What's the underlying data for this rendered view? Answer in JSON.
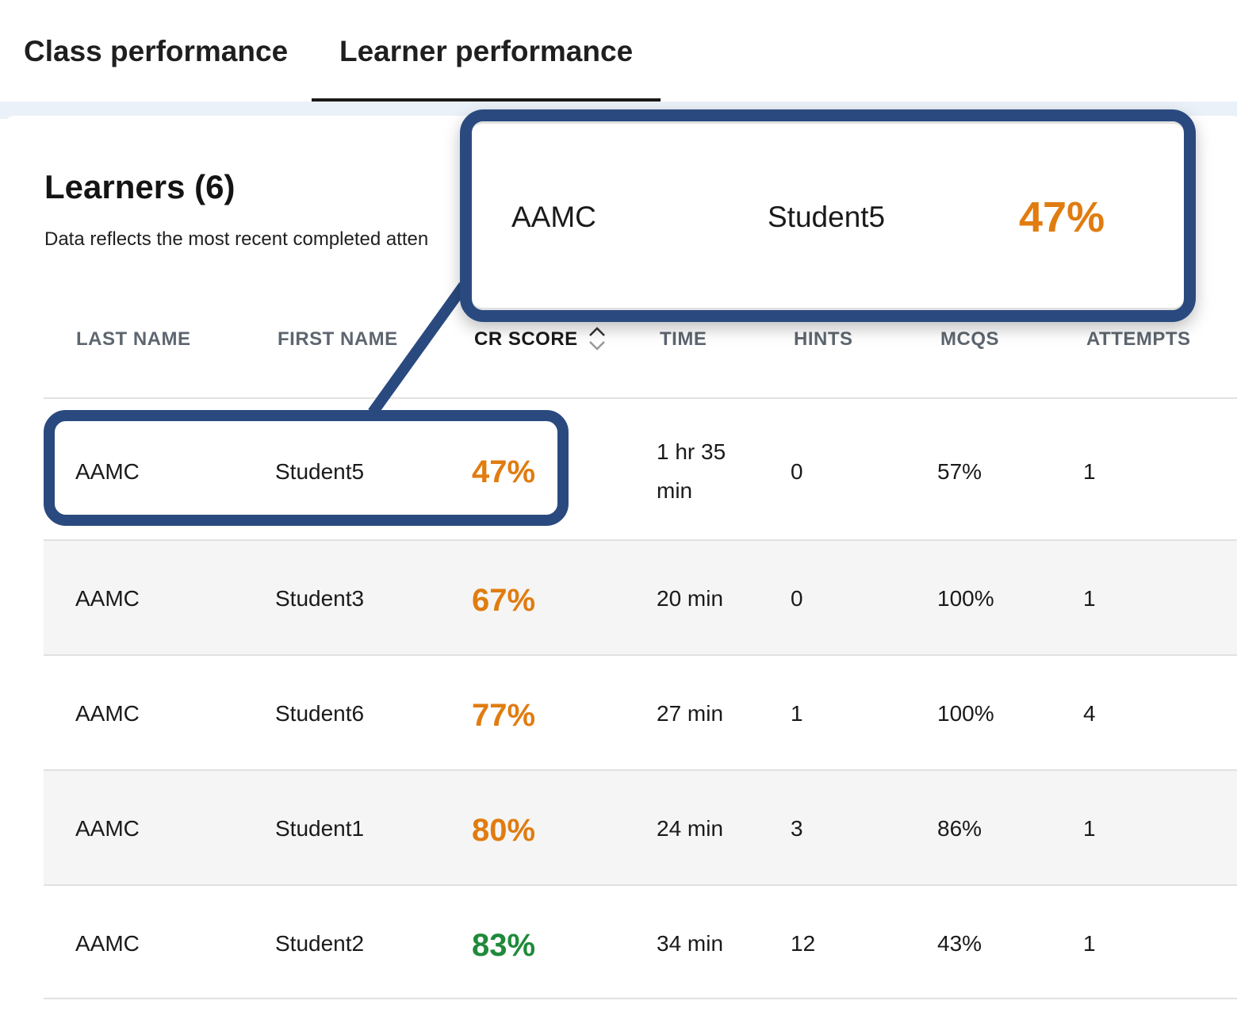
{
  "tabs": [
    {
      "label": "Class performance",
      "active": false
    },
    {
      "label": "Learner performance",
      "active": true
    }
  ],
  "learners": {
    "title": "Learners (6)",
    "subtitle": "Data reflects the most recent completed atten"
  },
  "table": {
    "columns": [
      "LAST NAME",
      "FIRST NAME",
      "CR SCORE",
      "TIME",
      "HINTS",
      "MCQS",
      "ATTEMPTS"
    ],
    "sort_icon": "sort-chevrons-icon",
    "rows": [
      {
        "last_name": "AAMC",
        "first_name": "Student5",
        "cr_score": "47%",
        "time": "1 hr 35 min",
        "hints": "0",
        "mcqs": "57%",
        "attempts": "1",
        "score_color": "#e07c10"
      },
      {
        "last_name": "AAMC",
        "first_name": "Student3",
        "cr_score": "67%",
        "time": "20 min",
        "hints": "0",
        "mcqs": "100%",
        "attempts": "1",
        "score_color": "#e07c10"
      },
      {
        "last_name": "AAMC",
        "first_name": "Student6",
        "cr_score": "77%",
        "time": "27 min",
        "hints": "1",
        "mcqs": "100%",
        "attempts": "4",
        "score_color": "#e07c10"
      },
      {
        "last_name": "AAMC",
        "first_name": "Student1",
        "cr_score": "80%",
        "time": "24 min",
        "hints": "3",
        "mcqs": "86%",
        "attempts": "1",
        "score_color": "#e07c10"
      },
      {
        "last_name": "AAMC",
        "first_name": "Student2",
        "cr_score": "83%",
        "time": "34 min",
        "hints": "12",
        "mcqs": "43%",
        "attempts": "1",
        "score_color": "#1f8a3a"
      }
    ]
  },
  "zoom": {
    "last_name": "AAMC",
    "first_name": "Student5",
    "cr_score": "47%"
  },
  "colors": {
    "highlight": "#2a4a7f",
    "score_orange": "#e07c10",
    "score_green": "#1f8a3a"
  }
}
